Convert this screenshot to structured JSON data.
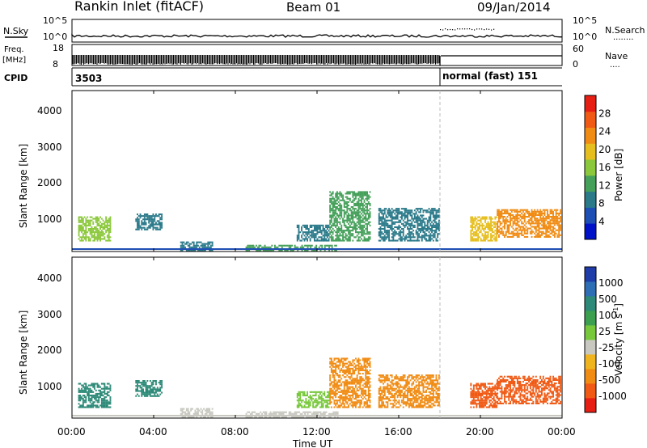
{
  "header": {
    "station": "Rankin Inlet (fitACF)",
    "beam": "Beam 01",
    "date": "09/Jan/2014"
  },
  "noise_panel": {
    "left_label": "N.Sky",
    "right_label": "N.Search",
    "right_legend": "........",
    "ticks_left": [
      "10^5",
      "10^0"
    ],
    "ticks_right": [
      "10^5",
      "10^0"
    ]
  },
  "freq_panel": {
    "left_label": "Freq.",
    "left_unit": "[MHz]",
    "left_ticks": [
      "18",
      "8"
    ],
    "right_label": "Nave",
    "right_legend": "....",
    "right_ticks": [
      "60",
      "0"
    ]
  },
  "cpid_panel": {
    "label": "CPID",
    "entries": [
      {
        "text": "3503",
        "start_hour": 0
      },
      {
        "text": "normal (fast) 151",
        "start_hour": 18.05
      }
    ]
  },
  "x_axis": {
    "label": "Time UT",
    "ticks": [
      "00:00",
      "04:00",
      "08:00",
      "12:00",
      "16:00",
      "20:00",
      "00:00"
    ],
    "tick_hours": [
      0,
      4,
      8,
      12,
      16,
      20,
      24
    ]
  },
  "power_panel": {
    "ylabel": "Slant Range [km]",
    "yticks": [
      "1000",
      "2000",
      "3000",
      "4000"
    ],
    "colorbar_label": "Power [dB]",
    "colorbar_ticks": [
      "4",
      "8",
      "12",
      "16",
      "20",
      "24",
      "28"
    ],
    "colors": [
      "#0012c8",
      "#1e4fb4",
      "#2b7a8a",
      "#45a05a",
      "#8cc83c",
      "#e6be1e",
      "#f08c14",
      "#f05a14",
      "#e61e14"
    ]
  },
  "velocity_panel": {
    "ylabel": "Slant Range [km]",
    "yticks": [
      "1000",
      "2000",
      "3000",
      "4000"
    ],
    "colorbar_label": "Velocity [m s",
    "colorbar_label_sup": "-1",
    "colorbar_label_end": "]",
    "colorbar_ticks": [
      "1000",
      "500",
      "100",
      "25",
      "-25",
      "-100",
      "-500",
      "-1000"
    ],
    "colors": [
      "#1f3ca8",
      "#2d6eb4",
      "#2e8a78",
      "#3ca050",
      "#78c83c",
      "#c8c8c0",
      "#f0b41e",
      "#f08c14",
      "#f05a14",
      "#e61e14"
    ]
  },
  "chart_data": {
    "type": "heatmap",
    "title": "Rankin Inlet (fitACF) Beam 01 09/Jan/2014",
    "xlabel": "Time UT",
    "ylabel": "Slant Range [km]",
    "xlim_hours": [
      0,
      24
    ],
    "ylim_km": [
      180,
      4500
    ],
    "mode_change_hour": 18.05,
    "echo_regions": [
      {
        "t0": 0.3,
        "t1": 1.9,
        "r0": 450,
        "r1": 1100,
        "power_db": 14,
        "velocity": 150
      },
      {
        "t0": 3.1,
        "t1": 4.4,
        "r0": 750,
        "r1": 1200,
        "power_db": 10,
        "velocity": 100
      },
      {
        "t0": 5.3,
        "t1": 6.9,
        "r0": 180,
        "r1": 450,
        "power_db": 8,
        "velocity": 20
      },
      {
        "t0": 8.5,
        "t1": 13.0,
        "r0": 180,
        "r1": 350,
        "power_db": 12,
        "velocity": 10
      },
      {
        "t0": 11.0,
        "t1": 12.6,
        "r0": 450,
        "r1": 900,
        "power_db": 8,
        "velocity": 30
      },
      {
        "t0": 12.6,
        "t1": 14.6,
        "r0": 450,
        "r1": 1800,
        "power_db": 12,
        "velocity": -300
      },
      {
        "t0": 15.0,
        "t1": 18.0,
        "r0": 450,
        "r1": 1350,
        "power_db": 9,
        "velocity": -200
      },
      {
        "t0": 19.5,
        "t1": 20.8,
        "r0": 450,
        "r1": 1100,
        "power_db": 18,
        "velocity": -500
      },
      {
        "t0": 20.8,
        "t1": 23.9,
        "r0": 550,
        "r1": 1300,
        "power_db": 22,
        "velocity": -450
      }
    ]
  }
}
